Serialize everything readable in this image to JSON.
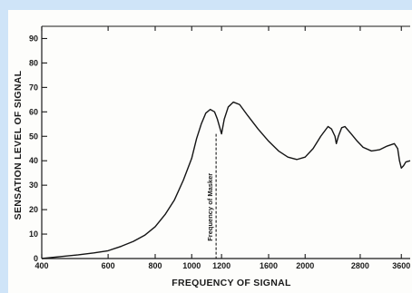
{
  "chart_data": {
    "type": "line",
    "xlabel": "FREQUENCY OF SIGNAL",
    "ylabel": "SENSATION LEVEL OF SIGNAL",
    "x_scale": "log",
    "xlim": [
      400,
      3800
    ],
    "ylim": [
      0,
      95
    ],
    "x_ticks": [
      400,
      600,
      800,
      1000,
      1200,
      1600,
      2000,
      2800,
      3600
    ],
    "x_tick_labels": [
      "400",
      "600",
      "800",
      "1000",
      "1200",
      "1600",
      "2000",
      "2800",
      "3600"
    ],
    "y_ticks": [
      0,
      10,
      20,
      30,
      40,
      50,
      60,
      70,
      80,
      90
    ],
    "y_tick_labels": [
      "0",
      "10",
      "20",
      "30",
      "40",
      "50",
      "60",
      "70",
      "80",
      "90"
    ],
    "annotations": [
      {
        "text": "Frequency of Masker",
        "x": 1200
      }
    ],
    "grid": false,
    "series": [
      {
        "x": [
          400,
          450,
          500,
          550,
          600,
          650,
          700,
          750,
          800,
          850,
          900,
          950,
          1000,
          1030,
          1060,
          1090,
          1120,
          1150,
          1170,
          1190,
          1200,
          1220,
          1250,
          1290,
          1340,
          1400,
          1500,
          1600,
          1700,
          1800,
          1900,
          2000,
          2100,
          2200,
          2300,
          2350,
          2400,
          2420,
          2450,
          2500,
          2550,
          2650,
          2750,
          2850,
          3000,
          3150,
          3300,
          3450,
          3520,
          3560,
          3600,
          3650,
          3700,
          3800
        ],
        "y": [
          0,
          0.8,
          1.5,
          2.3,
          3.2,
          5,
          7,
          9.5,
          13,
          18,
          24,
          32,
          41,
          49,
          55,
          59.5,
          61,
          60,
          57,
          53,
          51,
          57,
          62,
          64,
          63,
          59,
          53,
          48,
          44,
          41.5,
          40.5,
          41.5,
          45,
          50,
          54,
          53,
          50,
          47,
          50,
          53.5,
          54,
          51,
          48,
          45.5,
          44,
          44.5,
          46,
          47,
          45,
          40,
          37,
          38,
          39.5,
          40
        ]
      }
    ]
  }
}
